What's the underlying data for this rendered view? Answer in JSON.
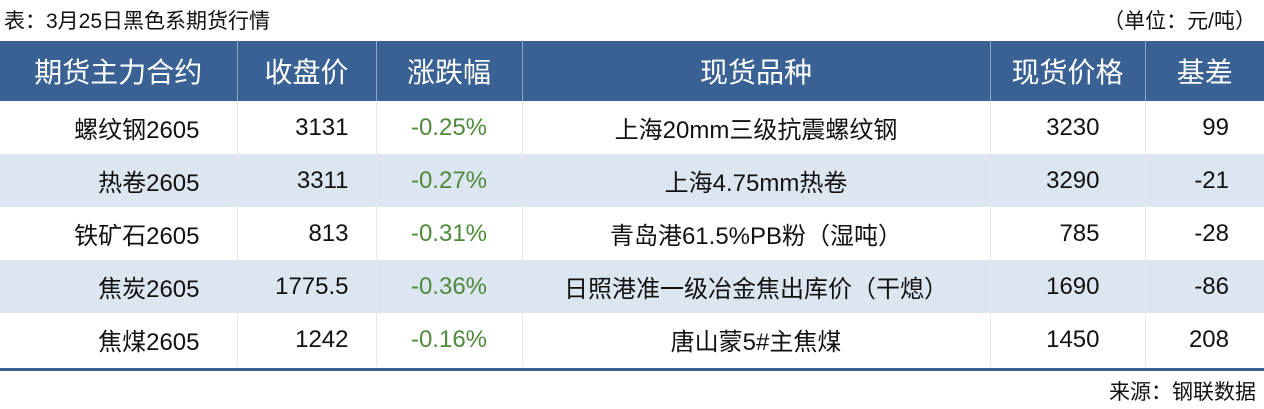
{
  "title": "表：3月25日黑色系期货行情",
  "unit": "（单位：元/吨）",
  "colors": {
    "header_bg": "#3a6193",
    "alt_row_bg": "#dce6f1",
    "change_text": "#4e8a3a"
  },
  "headers": [
    "期货主力合约",
    "收盘价",
    "涨跌幅",
    "现货品种",
    "现货价格",
    "基差"
  ],
  "rows": [
    [
      "螺纹钢2605",
      "3131",
      "-0.25%",
      "上海20mm三级抗震螺纹钢",
      "3230",
      "99"
    ],
    [
      "热卷2605",
      "3311",
      "-0.27%",
      "上海4.75mm热卷",
      "3290",
      "-21"
    ],
    [
      "铁矿石2605",
      "813",
      "-0.31%",
      "青岛港61.5%PB粉（湿吨）",
      "785",
      "-28"
    ],
    [
      "焦炭2605",
      "1775.5",
      "-0.36%",
      "日照港准一级冶金焦出库价（干熄）",
      "1690",
      "-86"
    ],
    [
      "焦煤2605",
      "1242",
      "-0.16%",
      "唐山蒙5#主焦煤",
      "1450",
      "208"
    ]
  ],
  "source": "来源：钢联数据"
}
